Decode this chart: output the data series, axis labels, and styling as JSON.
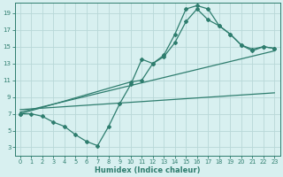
{
  "line1_x": [
    0,
    1,
    2,
    3,
    4,
    5,
    6,
    7,
    8,
    9,
    10,
    11,
    12,
    13,
    14,
    15,
    16,
    17,
    18,
    19,
    20,
    21,
    22,
    23
  ],
  "line1_y": [
    7.0,
    7.0,
    6.7,
    6.0,
    5.5,
    4.5,
    3.7,
    3.2,
    5.5,
    8.2,
    10.5,
    13.5,
    13.0,
    14.0,
    16.5,
    19.5,
    19.9,
    19.5,
    17.5,
    16.5,
    15.2,
    14.7,
    15.0,
    14.8
  ],
  "line2_x": [
    0,
    10,
    11,
    12,
    13,
    14,
    15,
    16,
    17,
    18,
    19,
    20,
    21,
    22,
    23
  ],
  "line2_y": [
    7.0,
    10.8,
    11.0,
    13.0,
    13.8,
    15.5,
    18.0,
    19.5,
    18.2,
    17.5,
    16.5,
    15.2,
    14.5,
    15.0,
    14.8
  ],
  "line3_x": [
    0,
    23
  ],
  "line3_y": [
    7.2,
    14.5
  ],
  "line4_x": [
    0,
    23
  ],
  "line4_y": [
    7.5,
    9.5
  ],
  "color": "#2e7d6e",
  "bg_color": "#d8f0f0",
  "grid_color": "#b8d8d8",
  "xlabel": "Humidex (Indice chaleur)",
  "xlim": [
    -0.5,
    23.5
  ],
  "ylim": [
    2.0,
    20.2
  ],
  "yticks": [
    3,
    5,
    7,
    9,
    11,
    13,
    15,
    17,
    19
  ],
  "xticks": [
    0,
    1,
    2,
    3,
    4,
    5,
    6,
    7,
    8,
    9,
    10,
    11,
    12,
    13,
    14,
    15,
    16,
    17,
    18,
    19,
    20,
    21,
    22,
    23
  ]
}
